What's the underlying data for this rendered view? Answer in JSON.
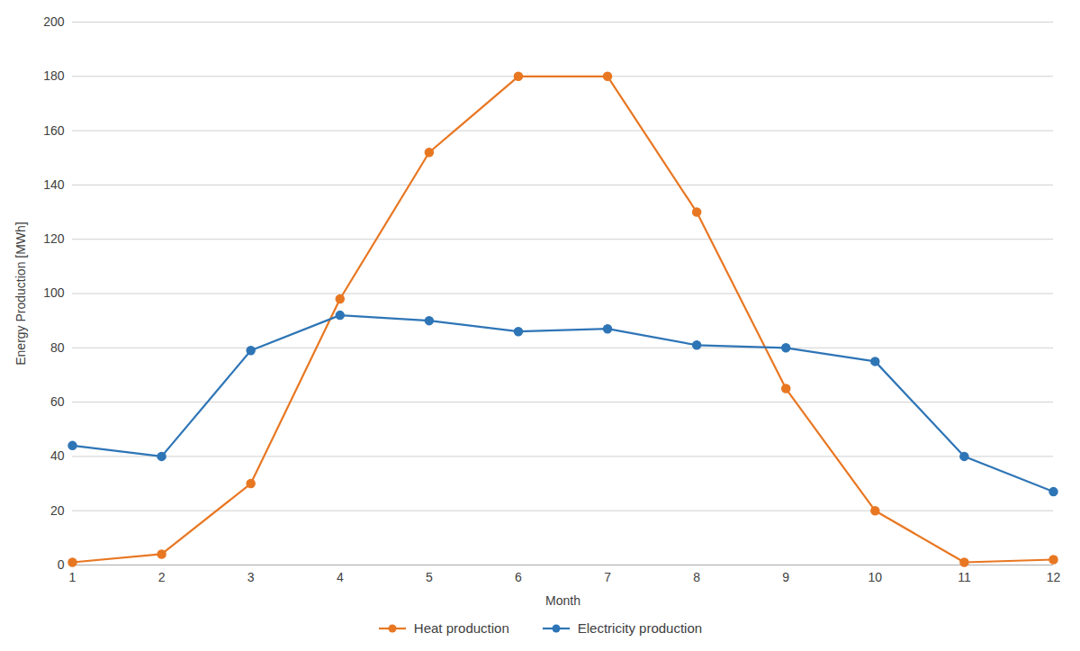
{
  "chart_data": {
    "type": "line",
    "x": [
      1,
      2,
      3,
      4,
      5,
      6,
      7,
      8,
      9,
      10,
      11,
      12
    ],
    "series": [
      {
        "name": "Heat production",
        "color": "#E87722",
        "values": [
          1,
          4,
          30,
          98,
          152,
          180,
          180,
          130,
          65,
          20,
          1,
          2
        ]
      },
      {
        "name": "Electricity production",
        "color": "#2E75B6",
        "values": [
          44,
          40,
          79,
          92,
          90,
          86,
          87,
          81,
          80,
          75,
          40,
          27
        ]
      }
    ],
    "xlabel": "Month",
    "ylabel": "Energy Production [MWh]",
    "xlim": [
      1,
      12
    ],
    "xticks": [
      1,
      2,
      3,
      4,
      5,
      6,
      7,
      8,
      9,
      10,
      11,
      12
    ],
    "ylim": [
      0,
      200
    ],
    "yticks": [
      0,
      20,
      40,
      60,
      80,
      100,
      120,
      140,
      160,
      180,
      200
    ],
    "grid": true,
    "legend": "bottom",
    "marker": "circle"
  }
}
